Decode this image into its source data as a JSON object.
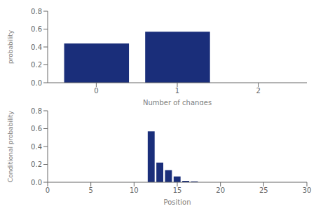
{
  "chart_data": [
    {
      "type": "bar",
      "xlabel": "Number of changes",
      "ylabel": "probability",
      "x": [
        0,
        1,
        2
      ],
      "values": [
        0.44,
        0.57,
        0.0
      ],
      "color": "#1a2e7a",
      "xlim": [
        -0.6,
        2.6
      ],
      "ylim": [
        0,
        0.8
      ],
      "xticks": [
        0,
        1,
        2
      ],
      "yticks": [
        {
          "value": 0,
          "label": "0.0"
        },
        {
          "value": 0.2,
          "label": "0.2"
        },
        {
          "value": 0.4,
          "label": "0.4"
        },
        {
          "value": 0.6,
          "label": "0.6"
        },
        {
          "value": 0.8,
          "label": "0.8"
        }
      ],
      "grid": false
    },
    {
      "type": "bar",
      "xlabel": "Position",
      "ylabel": "Conditional probability",
      "x": [
        12,
        13,
        14,
        15,
        16,
        17
      ],
      "values": [
        0.57,
        0.22,
        0.135,
        0.065,
        0.015,
        0.01
      ],
      "color": "#1a2e7a",
      "xlim": [
        0,
        30
      ],
      "ylim": [
        0,
        0.8
      ],
      "xticks": [
        0,
        5,
        10,
        15,
        20,
        25,
        30
      ],
      "yticks": [
        {
          "value": 0,
          "label": "0.0"
        },
        {
          "value": 0.2,
          "label": "0.2"
        },
        {
          "value": 0.4,
          "label": "0.4"
        },
        {
          "value": 0.6,
          "label": "0.6"
        },
        {
          "value": 0.8,
          "label": "0.8"
        }
      ],
      "grid": false
    }
  ]
}
